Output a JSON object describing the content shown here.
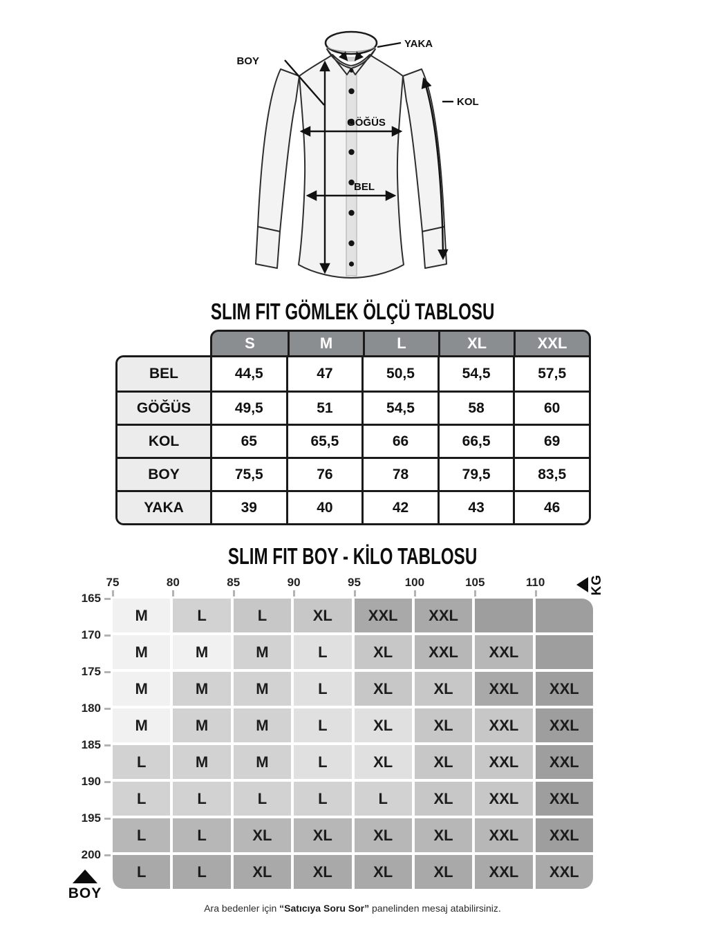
{
  "shirt_diagram": {
    "labels": {
      "yaka": "YAKA",
      "boy": "BOY",
      "kol": "KOL",
      "gogus": "GÖĞÜS",
      "bel": "BEL"
    }
  },
  "size_table": {
    "title": "SLIM FIT GÖMLEK ÖLÇÜ TABLOSU",
    "columns": [
      "S",
      "M",
      "L",
      "XL",
      "XXL"
    ],
    "rows": [
      {
        "label": "BEL",
        "values": [
          "44,5",
          "47",
          "50,5",
          "54,5",
          "57,5"
        ]
      },
      {
        "label": "GÖĞÜS",
        "values": [
          "49,5",
          "51",
          "54,5",
          "58",
          "60"
        ]
      },
      {
        "label": "KOL",
        "values": [
          "65",
          "65,5",
          "66",
          "66,5",
          "69"
        ]
      },
      {
        "label": "BOY",
        "values": [
          "75,5",
          "76",
          "78",
          "79,5",
          "83,5"
        ]
      },
      {
        "label": "YAKA",
        "values": [
          "39",
          "40",
          "42",
          "43",
          "46"
        ]
      }
    ],
    "header_bg": "#8b8e91",
    "label_bg": "#ececec",
    "border_color": "#1a1a1a"
  },
  "matrix": {
    "title": "SLIM FIT BOY - KİLO TABLOSU",
    "kg_label": "KG",
    "boy_label": "BOY",
    "kg_ticks": [
      "75",
      "80",
      "85",
      "90",
      "95",
      "100",
      "105",
      "110"
    ],
    "boy_ticks": [
      "165",
      "170",
      "175",
      "180",
      "185",
      "190",
      "195",
      "200"
    ],
    "shades": {
      "A": "#f1f1f1",
      "B": "#e0e0e0",
      "C": "#d2d2d2",
      "D": "#c7c7c7",
      "E": "#b7b7b7",
      "F": "#a9a9a9",
      "G": "#9e9e9e"
    },
    "rows": [
      {
        "boy": "165",
        "cells": [
          [
            "M",
            "A"
          ],
          [
            "L",
            "C"
          ],
          [
            "L",
            "D"
          ],
          [
            "XL",
            "D"
          ],
          [
            "XXL",
            "F"
          ],
          [
            "XXL",
            "F"
          ],
          [
            "",
            "G"
          ],
          [
            "",
            "G"
          ]
        ]
      },
      {
        "boy": "170",
        "cells": [
          [
            "M",
            "A"
          ],
          [
            "M",
            "A"
          ],
          [
            "M",
            "C"
          ],
          [
            "L",
            "B"
          ],
          [
            "XL",
            "D"
          ],
          [
            "XXL",
            "E"
          ],
          [
            "XXL",
            "E"
          ],
          [
            "",
            "G"
          ]
        ]
      },
      {
        "boy": "175",
        "cells": [
          [
            "M",
            "A"
          ],
          [
            "M",
            "C"
          ],
          [
            "M",
            "C"
          ],
          [
            "L",
            "B"
          ],
          [
            "XL",
            "D"
          ],
          [
            "XL",
            "D"
          ],
          [
            "XXL",
            "F"
          ],
          [
            "XXL",
            "G"
          ]
        ]
      },
      {
        "boy": "180",
        "cells": [
          [
            "M",
            "A"
          ],
          [
            "M",
            "C"
          ],
          [
            "M",
            "C"
          ],
          [
            "L",
            "B"
          ],
          [
            "XL",
            "B"
          ],
          [
            "XL",
            "D"
          ],
          [
            "XXL",
            "D"
          ],
          [
            "XXL",
            "G"
          ]
        ]
      },
      {
        "boy": "185",
        "cells": [
          [
            "L",
            "C"
          ],
          [
            "M",
            "C"
          ],
          [
            "M",
            "C"
          ],
          [
            "L",
            "B"
          ],
          [
            "XL",
            "B"
          ],
          [
            "XL",
            "D"
          ],
          [
            "XXL",
            "D"
          ],
          [
            "XXL",
            "G"
          ]
        ]
      },
      {
        "boy": "190",
        "cells": [
          [
            "L",
            "C"
          ],
          [
            "L",
            "C"
          ],
          [
            "L",
            "C"
          ],
          [
            "L",
            "C"
          ],
          [
            "L",
            "C"
          ],
          [
            "XL",
            "D"
          ],
          [
            "XXL",
            "D"
          ],
          [
            "XXL",
            "G"
          ]
        ]
      },
      {
        "boy": "195",
        "cells": [
          [
            "L",
            "E"
          ],
          [
            "L",
            "E"
          ],
          [
            "XL",
            "E"
          ],
          [
            "XL",
            "E"
          ],
          [
            "XL",
            "E"
          ],
          [
            "XL",
            "E"
          ],
          [
            "XXL",
            "E"
          ],
          [
            "XXL",
            "G"
          ]
        ]
      },
      {
        "boy": "200",
        "cells": [
          [
            "L",
            "F"
          ],
          [
            "L",
            "F"
          ],
          [
            "XL",
            "F"
          ],
          [
            "XL",
            "F"
          ],
          [
            "XL",
            "F"
          ],
          [
            "XL",
            "F"
          ],
          [
            "XXL",
            "F"
          ],
          [
            "XXL",
            "F"
          ]
        ]
      }
    ]
  },
  "footer": {
    "prefix": "Ara bedenler için ",
    "bold": "“Satıcıya Soru Sor”",
    "suffix": " panelinden mesaj atabilirsiniz."
  },
  "chart_data": [
    {
      "type": "table",
      "title": "SLIM FIT GÖMLEK ÖLÇÜ TABLOSU",
      "columns": [
        "S",
        "M",
        "L",
        "XL",
        "XXL"
      ],
      "rows": [
        [
          "BEL",
          44.5,
          47,
          50.5,
          54.5,
          57.5
        ],
        [
          "GÖĞÜS",
          49.5,
          51,
          54.5,
          58,
          60
        ],
        [
          "KOL",
          65,
          65.5,
          66,
          66.5,
          69
        ],
        [
          "BOY",
          75.5,
          76,
          78,
          79.5,
          83.5
        ],
        [
          "YAKA",
          39,
          40,
          42,
          43,
          46
        ]
      ]
    },
    {
      "type": "heatmap",
      "title": "SLIM FIT BOY - KİLO TABLOSU",
      "xlabel": "KG",
      "ylabel": "BOY",
      "x_ticks": [
        75,
        80,
        85,
        90,
        95,
        100,
        105,
        110
      ],
      "y_ticks": [
        165,
        170,
        175,
        180,
        185,
        190,
        195,
        200
      ],
      "cells": [
        [
          "M",
          "L",
          "L",
          "XL",
          "XXL",
          "XXL",
          "",
          ""
        ],
        [
          "M",
          "M",
          "M",
          "L",
          "XL",
          "XXL",
          "XXL",
          ""
        ],
        [
          "M",
          "M",
          "M",
          "L",
          "XL",
          "XL",
          "XXL",
          "XXL"
        ],
        [
          "M",
          "M",
          "M",
          "L",
          "XL",
          "XL",
          "XXL",
          "XXL"
        ],
        [
          "L",
          "M",
          "M",
          "L",
          "XL",
          "XL",
          "XXL",
          "XXL"
        ],
        [
          "L",
          "L",
          "L",
          "L",
          "L",
          "XL",
          "XXL",
          "XXL"
        ],
        [
          "L",
          "L",
          "XL",
          "XL",
          "XL",
          "XL",
          "XXL",
          "XXL"
        ],
        [
          "L",
          "L",
          "XL",
          "XL",
          "XL",
          "XL",
          "XXL",
          "XXL"
        ]
      ]
    }
  ]
}
